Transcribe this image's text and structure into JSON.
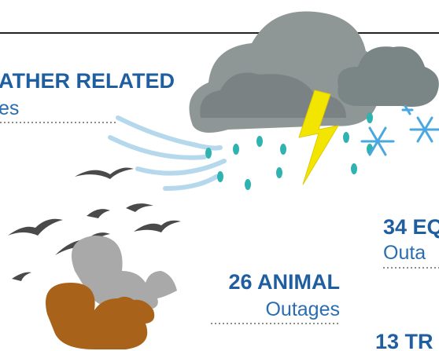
{
  "weather": {
    "title": "ATHER RELATED",
    "subtitle": "es"
  },
  "equipment": {
    "title": "34 EQ",
    "subtitle": "Outa"
  },
  "animal": {
    "title": "26 ANIMAL",
    "subtitle": "Outages"
  },
  "trees": {
    "title": "13 TR"
  }
}
